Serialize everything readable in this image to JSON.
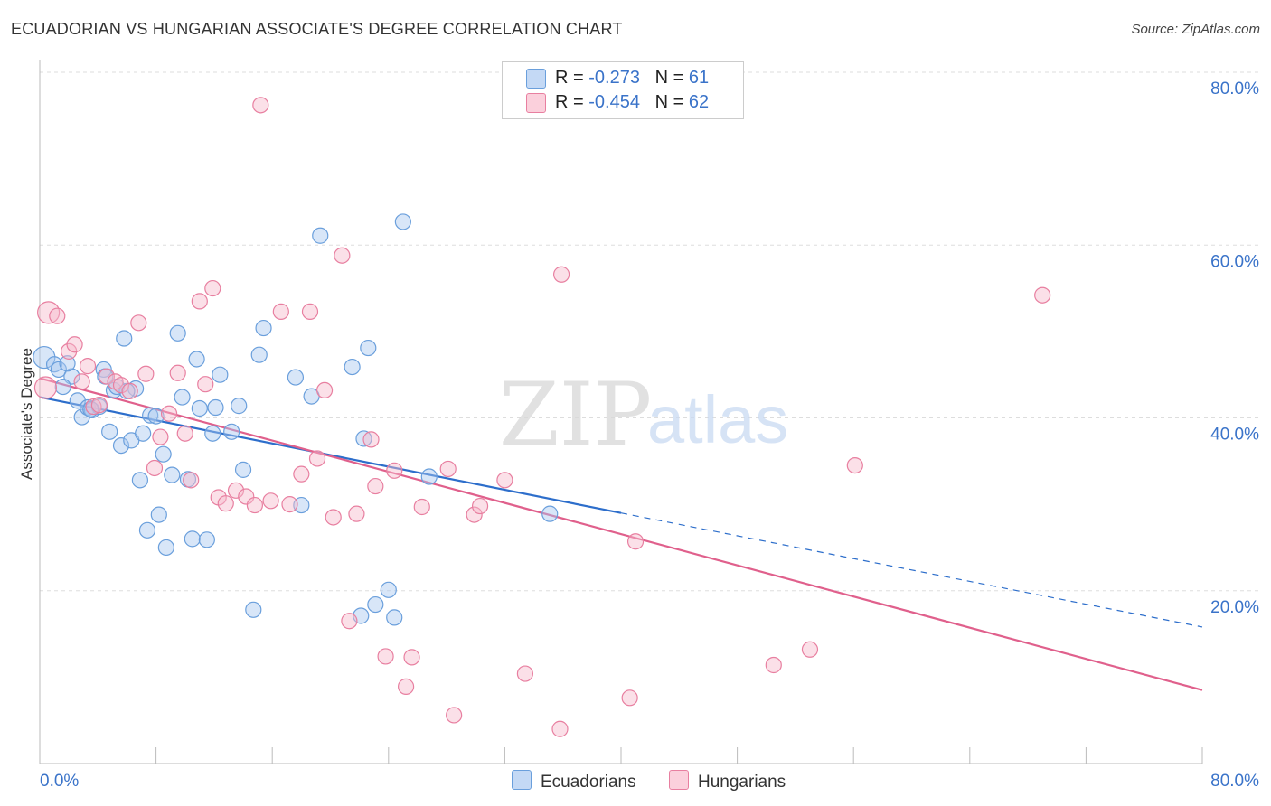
{
  "title": "ECUADORIAN VS HUNGARIAN ASSOCIATE'S DEGREE CORRELATION CHART",
  "source": "Source: ZipAtlas.com",
  "watermark": {
    "zip": "ZIP",
    "atlas": "atlas"
  },
  "legend": {
    "rows": [
      {
        "r_label": "R = ",
        "r_value": "-0.273",
        "n_label": "N = ",
        "n_value": "61"
      },
      {
        "r_label": "R = ",
        "r_value": "-0.454",
        "n_label": "N = ",
        "n_value": "62"
      }
    ]
  },
  "chart_data": {
    "type": "scatter",
    "ylabel": "Associate's Degree",
    "xlim": [
      0,
      80
    ],
    "ylim": [
      0,
      80
    ],
    "x_tick_labels": [
      "0.0%",
      "80.0%"
    ],
    "y_tick_values": [
      20,
      40,
      60,
      80
    ],
    "y_tick_labels": [
      "20.0%",
      "40.0%",
      "60.0%",
      "80.0%"
    ],
    "grid": "horizontal dashed",
    "series": [
      {
        "name": "Ecuadorians",
        "color": "#a9c7ef",
        "stroke": "#6a9fdc",
        "line_color": "#2d6ecb",
        "trend": {
          "x0": 0,
          "y0": 42.4,
          "x1": 40,
          "y1": 29.0,
          "dash_to_x": 80,
          "dash_to_y": 15.8
        },
        "points": [
          [
            0.3,
            47.0
          ],
          [
            1.0,
            46.2
          ],
          [
            1.3,
            45.6
          ],
          [
            2.2,
            44.8
          ],
          [
            4.4,
            45.6
          ],
          [
            1.6,
            43.6
          ],
          [
            2.6,
            42.0
          ],
          [
            2.9,
            40.1
          ],
          [
            3.3,
            41.2
          ],
          [
            3.6,
            40.9
          ],
          [
            4.1,
            41.3
          ],
          [
            4.5,
            44.8
          ],
          [
            4.8,
            38.4
          ],
          [
            5.1,
            43.2
          ],
          [
            5.3,
            43.6
          ],
          [
            5.6,
            36.8
          ],
          [
            5.8,
            49.2
          ],
          [
            6.3,
            37.4
          ],
          [
            6.6,
            43.4
          ],
          [
            6.9,
            32.8
          ],
          [
            7.1,
            38.2
          ],
          [
            7.4,
            27.0
          ],
          [
            7.6,
            40.3
          ],
          [
            8.0,
            40.2
          ],
          [
            8.2,
            28.8
          ],
          [
            8.5,
            35.8
          ],
          [
            8.7,
            25.0
          ],
          [
            9.1,
            33.4
          ],
          [
            9.5,
            49.8
          ],
          [
            9.8,
            42.4
          ],
          [
            10.2,
            32.9
          ],
          [
            10.5,
            26.0
          ],
          [
            10.8,
            46.8
          ],
          [
            11.0,
            41.1
          ],
          [
            11.5,
            25.9
          ],
          [
            11.9,
            38.2
          ],
          [
            12.1,
            41.2
          ],
          [
            12.4,
            45.0
          ],
          [
            13.2,
            38.4
          ],
          [
            13.7,
            41.4
          ],
          [
            14.0,
            34.0
          ],
          [
            14.7,
            17.8
          ],
          [
            15.1,
            47.3
          ],
          [
            15.4,
            50.4
          ],
          [
            17.6,
            44.7
          ],
          [
            18.0,
            29.9
          ],
          [
            18.7,
            42.5
          ],
          [
            19.3,
            61.1
          ],
          [
            21.5,
            45.9
          ],
          [
            22.3,
            37.6
          ],
          [
            22.1,
            17.1
          ],
          [
            22.6,
            48.1
          ],
          [
            23.1,
            18.4
          ],
          [
            24.0,
            20.1
          ],
          [
            24.4,
            16.9
          ],
          [
            25.0,
            62.7
          ],
          [
            26.8,
            33.2
          ],
          [
            35.1,
            28.9
          ],
          [
            1.9,
            46.3
          ],
          [
            3.5,
            41.0
          ],
          [
            6.0,
            43.1
          ]
        ]
      },
      {
        "name": "Hungarians",
        "color": "#f6bbcb",
        "stroke": "#e87fa0",
        "line_color": "#e0608c",
        "trend": {
          "x0": 0,
          "y0": 44.6,
          "x1": 80,
          "y1": 8.5
        },
        "points": [
          [
            0.6,
            52.2
          ],
          [
            0.4,
            43.5
          ],
          [
            1.2,
            51.8
          ],
          [
            2.0,
            47.7
          ],
          [
            2.4,
            48.5
          ],
          [
            2.9,
            44.2
          ],
          [
            3.3,
            46.0
          ],
          [
            3.7,
            41.3
          ],
          [
            4.1,
            41.5
          ],
          [
            4.6,
            44.8
          ],
          [
            5.2,
            44.2
          ],
          [
            5.6,
            43.8
          ],
          [
            6.2,
            43.1
          ],
          [
            6.8,
            51.0
          ],
          [
            7.3,
            45.1
          ],
          [
            7.9,
            34.2
          ],
          [
            8.3,
            37.8
          ],
          [
            8.9,
            40.5
          ],
          [
            9.5,
            45.2
          ],
          [
            10.0,
            38.2
          ],
          [
            10.4,
            32.8
          ],
          [
            11.0,
            53.5
          ],
          [
            11.4,
            43.9
          ],
          [
            11.9,
            55.0
          ],
          [
            12.3,
            30.8
          ],
          [
            12.8,
            30.1
          ],
          [
            13.5,
            31.6
          ],
          [
            14.2,
            30.9
          ],
          [
            14.8,
            29.9
          ],
          [
            15.2,
            76.2
          ],
          [
            15.9,
            30.4
          ],
          [
            16.6,
            52.3
          ],
          [
            17.2,
            30.0
          ],
          [
            18.0,
            33.5
          ],
          [
            18.6,
            52.3
          ],
          [
            19.1,
            35.3
          ],
          [
            19.6,
            43.2
          ],
          [
            20.2,
            28.5
          ],
          [
            20.8,
            58.8
          ],
          [
            21.3,
            16.5
          ],
          [
            21.8,
            28.9
          ],
          [
            22.8,
            37.5
          ],
          [
            23.1,
            32.1
          ],
          [
            23.8,
            12.4
          ],
          [
            24.4,
            33.9
          ],
          [
            25.2,
            8.9
          ],
          [
            25.6,
            12.3
          ],
          [
            26.3,
            29.7
          ],
          [
            28.1,
            34.1
          ],
          [
            28.5,
            5.6
          ],
          [
            29.9,
            28.8
          ],
          [
            30.3,
            29.8
          ],
          [
            32.0,
            32.8
          ],
          [
            33.4,
            10.4
          ],
          [
            35.8,
            4.0
          ],
          [
            35.9,
            56.6
          ],
          [
            41.0,
            25.7
          ],
          [
            40.6,
            7.6
          ],
          [
            50.5,
            11.4
          ],
          [
            53.0,
            13.2
          ],
          [
            56.1,
            34.5
          ],
          [
            69.0,
            54.2
          ]
        ]
      }
    ]
  }
}
